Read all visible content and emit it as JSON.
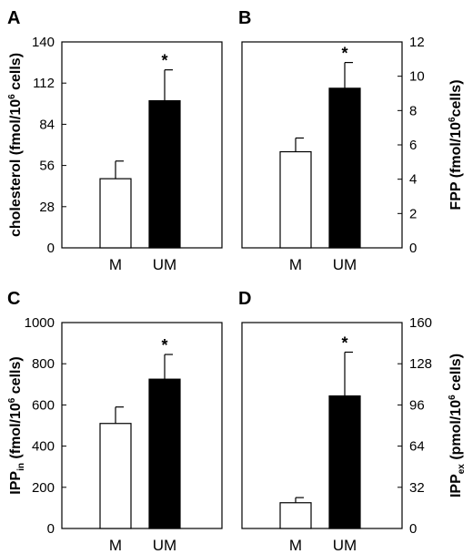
{
  "chart_data": [
    {
      "panel": "A",
      "type": "bar",
      "categories": [
        "M",
        "UM"
      ],
      "values": [
        47,
        100
      ],
      "errors": [
        12,
        21
      ],
      "significance": [
        "",
        "*"
      ],
      "colors": [
        "#ffffff",
        "#000000"
      ],
      "ylim": [
        0,
        140
      ],
      "yticks": [
        0,
        28,
        56,
        84,
        112,
        140
      ],
      "ylabel": {
        "main": "cholesterol (fmol/10",
        "sup": "6",
        "after": " cells)",
        "sub": ""
      },
      "yaxis_side": "left"
    },
    {
      "panel": "B",
      "type": "bar",
      "categories": [
        "M",
        "UM"
      ],
      "values": [
        5.6,
        9.3
      ],
      "errors": [
        0.8,
        1.5
      ],
      "significance": [
        "",
        "*"
      ],
      "colors": [
        "#ffffff",
        "#000000"
      ],
      "ylim": [
        0,
        12
      ],
      "yticks": [
        0,
        2,
        4,
        6,
        8,
        10,
        12
      ],
      "ylabel": {
        "main": "FPP  (fmol/10",
        "sup": "6",
        "after": "cells)",
        "sub": ""
      },
      "yaxis_side": "right"
    },
    {
      "panel": "C",
      "type": "bar",
      "categories": [
        "M",
        "UM"
      ],
      "values": [
        510,
        725
      ],
      "errors": [
        80,
        120
      ],
      "significance": [
        "",
        "*"
      ],
      "colors": [
        "#ffffff",
        "#000000"
      ],
      "ylim": [
        0,
        1000
      ],
      "yticks": [
        0,
        200,
        400,
        600,
        800,
        1000
      ],
      "ylabel": {
        "main": "IPP",
        "sub": "in",
        "rest": "  (fmol/10",
        "sup": "6",
        "after": " cells)"
      },
      "yaxis_side": "left"
    },
    {
      "panel": "D",
      "type": "bar",
      "categories": [
        "M",
        "UM"
      ],
      "values": [
        20,
        103
      ],
      "errors": [
        4,
        34
      ],
      "significance": [
        "",
        "*"
      ],
      "colors": [
        "#ffffff",
        "#000000"
      ],
      "ylim": [
        0,
        160
      ],
      "yticks": [
        0,
        32,
        64,
        96,
        128,
        160
      ],
      "ylabel": {
        "main": "IPP",
        "sub": "ex",
        "rest": "  (pmol/10",
        "sup": "6",
        "after": " cells)"
      },
      "yaxis_side": "right"
    }
  ]
}
